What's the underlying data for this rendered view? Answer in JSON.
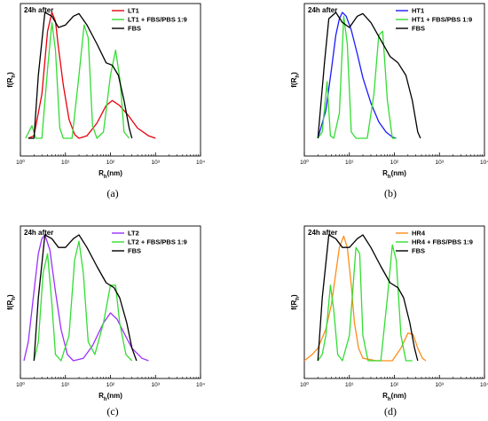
{
  "chart_data": [
    {
      "type": "line",
      "caption": "(a)",
      "annotation": "24h after",
      "xlabel": "R_h(nm)",
      "ylabel": "f(R_h)",
      "x_scale": "log",
      "xlim": [
        1,
        10000
      ],
      "ylim": [
        0,
        1
      ],
      "xticks": [
        "10⁰",
        "10¹",
        "10²",
        "10³",
        "10⁴"
      ],
      "legend_position": "top-right",
      "series": [
        {
          "name": "LT1",
          "color": "#e8000b",
          "points": [
            [
              1.5,
              0
            ],
            [
              2,
              0.02
            ],
            [
              3,
              0.35
            ],
            [
              4,
              0.85
            ],
            [
              5,
              1.0
            ],
            [
              6,
              0.93
            ],
            [
              7,
              0.72
            ],
            [
              9,
              0.42
            ],
            [
              12,
              0.15
            ],
            [
              16,
              0.03
            ],
            [
              20,
              0.0
            ],
            [
              30,
              0.02
            ],
            [
              50,
              0.12
            ],
            [
              80,
              0.26
            ],
            [
              110,
              0.3
            ],
            [
              160,
              0.26
            ],
            [
              250,
              0.18
            ],
            [
              400,
              0.08
            ],
            [
              700,
              0.02
            ],
            [
              1000,
              0
            ]
          ]
        },
        {
          "name": "LT1 + FBS/PBS 1:9",
          "color": "#33dd33",
          "points": [
            [
              1.3,
              0
            ],
            [
              1.8,
              0.1
            ],
            [
              2.2,
              0.0
            ],
            [
              3,
              0.0
            ],
            [
              4,
              0.55
            ],
            [
              5,
              0.92
            ],
            [
              6,
              0.7
            ],
            [
              7.5,
              0.08
            ],
            [
              9,
              0.0
            ],
            [
              14,
              0.0
            ],
            [
              20,
              0.5
            ],
            [
              26,
              0.9
            ],
            [
              32,
              0.8
            ],
            [
              40,
              0.1
            ],
            [
              50,
              0.0
            ],
            [
              70,
              0.05
            ],
            [
              100,
              0.5
            ],
            [
              130,
              0.7
            ],
            [
              165,
              0.45
            ],
            [
              200,
              0.05
            ],
            [
              260,
              0
            ]
          ]
        },
        {
          "name": "FBS",
          "color": "#000000",
          "points": [
            [
              1.5,
              0
            ],
            [
              2,
              0.0
            ],
            [
              2.5,
              0.5
            ],
            [
              3.5,
              1.0
            ],
            [
              5,
              0.97
            ],
            [
              7,
              0.88
            ],
            [
              10,
              0.9
            ],
            [
              15,
              0.97
            ],
            [
              20,
              0.99
            ],
            [
              30,
              0.9
            ],
            [
              50,
              0.75
            ],
            [
              80,
              0.6
            ],
            [
              110,
              0.58
            ],
            [
              150,
              0.5
            ],
            [
              200,
              0.3
            ],
            [
              260,
              0.08
            ],
            [
              300,
              0
            ]
          ]
        }
      ]
    },
    {
      "type": "line",
      "caption": "(b)",
      "annotation": "24h after",
      "xlabel": "R_h(nm)",
      "ylabel": "f(R_h)",
      "x_scale": "log",
      "xlim": [
        1,
        10000
      ],
      "ylim": [
        0,
        1
      ],
      "xticks": [
        "10⁰",
        "10¹",
        "10²",
        "10³",
        "10⁴"
      ],
      "legend_position": "top-right",
      "series": [
        {
          "name": "HT1",
          "color": "#1a1aff",
          "points": [
            [
              2,
              0
            ],
            [
              3,
              0.22
            ],
            [
              4,
              0.55
            ],
            [
              5,
              0.82
            ],
            [
              6,
              0.95
            ],
            [
              7,
              1.0
            ],
            [
              8.5,
              0.97
            ],
            [
              11,
              0.86
            ],
            [
              15,
              0.67
            ],
            [
              20,
              0.48
            ],
            [
              30,
              0.28
            ],
            [
              45,
              0.13
            ],
            [
              65,
              0.05
            ],
            [
              90,
              0.01
            ],
            [
              110,
              0
            ]
          ]
        },
        {
          "name": "HT1 + FBS/PBS 1:9",
          "color": "#33dd33",
          "points": [
            [
              2,
              0
            ],
            [
              2.5,
              0.05
            ],
            [
              3.2,
              0.45
            ],
            [
              3.8,
              0.02
            ],
            [
              4.5,
              0.0
            ],
            [
              6,
              0.2
            ],
            [
              7.5,
              0.97
            ],
            [
              9,
              0.75
            ],
            [
              11,
              0.05
            ],
            [
              14,
              0.0
            ],
            [
              25,
              0.0
            ],
            [
              35,
              0.35
            ],
            [
              45,
              0.82
            ],
            [
              55,
              0.85
            ],
            [
              70,
              0.3
            ],
            [
              90,
              0.0
            ],
            [
              110,
              0
            ]
          ]
        },
        {
          "name": "FBS",
          "color": "#000000",
          "points": [
            [
              2,
              0
            ],
            [
              2.8,
              0.6
            ],
            [
              3.5,
              0.95
            ],
            [
              5,
              1.0
            ],
            [
              7,
              0.92
            ],
            [
              10,
              0.88
            ],
            [
              15,
              0.97
            ],
            [
              20,
              0.99
            ],
            [
              30,
              0.92
            ],
            [
              50,
              0.78
            ],
            [
              80,
              0.65
            ],
            [
              120,
              0.6
            ],
            [
              180,
              0.5
            ],
            [
              250,
              0.3
            ],
            [
              330,
              0.05
            ],
            [
              380,
              0
            ]
          ]
        }
      ]
    },
    {
      "type": "line",
      "caption": "(c)",
      "annotation": "24h after",
      "xlabel": "R_h(nm)",
      "ylabel": "f(R_h)",
      "x_scale": "log",
      "xlim": [
        1,
        10000
      ],
      "ylim": [
        0,
        1
      ],
      "xticks": [
        "10⁰",
        "10¹",
        "10²",
        "10³",
        "10⁴"
      ],
      "legend_position": "top-right",
      "series": [
        {
          "name": "LT2",
          "color": "#9b30ff",
          "points": [
            [
              1.2,
              0
            ],
            [
              1.5,
              0.15
            ],
            [
              2,
              0.55
            ],
            [
              2.5,
              0.85
            ],
            [
              3,
              0.97
            ],
            [
              3.5,
              1.0
            ],
            [
              4.5,
              0.88
            ],
            [
              6,
              0.55
            ],
            [
              8,
              0.25
            ],
            [
              11,
              0.05
            ],
            [
              15,
              0.0
            ],
            [
              25,
              0.02
            ],
            [
              40,
              0.12
            ],
            [
              70,
              0.3
            ],
            [
              100,
              0.38
            ],
            [
              140,
              0.33
            ],
            [
              200,
              0.22
            ],
            [
              300,
              0.1
            ],
            [
              500,
              0.02
            ],
            [
              700,
              0
            ]
          ]
        },
        {
          "name": "LT2 + FBS/PBS 1:9",
          "color": "#33dd33",
          "points": [
            [
              2,
              0
            ],
            [
              2.5,
              0.15
            ],
            [
              3.2,
              0.7
            ],
            [
              4,
              0.85
            ],
            [
              5,
              0.45
            ],
            [
              6,
              0.05
            ],
            [
              8,
              0.0
            ],
            [
              12,
              0.2
            ],
            [
              16,
              0.8
            ],
            [
              20,
              0.95
            ],
            [
              25,
              0.7
            ],
            [
              32,
              0.15
            ],
            [
              45,
              0.05
            ],
            [
              70,
              0.3
            ],
            [
              100,
              0.6
            ],
            [
              130,
              0.6
            ],
            [
              160,
              0.3
            ],
            [
              220,
              0.05
            ],
            [
              300,
              0
            ]
          ]
        },
        {
          "name": "FBS",
          "color": "#000000",
          "points": [
            [
              2,
              0
            ],
            [
              2.5,
              0.5
            ],
            [
              3.5,
              1.0
            ],
            [
              5,
              0.97
            ],
            [
              7,
              0.9
            ],
            [
              10,
              0.9
            ],
            [
              15,
              0.97
            ],
            [
              20,
              1.0
            ],
            [
              30,
              0.9
            ],
            [
              50,
              0.75
            ],
            [
              80,
              0.62
            ],
            [
              120,
              0.58
            ],
            [
              160,
              0.5
            ],
            [
              230,
              0.3
            ],
            [
              300,
              0.1
            ],
            [
              380,
              0
            ]
          ]
        }
      ]
    },
    {
      "type": "line",
      "caption": "(d)",
      "annotation": "24h after",
      "xlabel": "R_h(nm)",
      "ylabel": "f(R_h)",
      "x_scale": "log",
      "xlim": [
        1,
        10000
      ],
      "ylim": [
        0,
        1
      ],
      "xticks": [
        "10⁰",
        "10¹",
        "10²",
        "10³",
        "10⁴"
      ],
      "legend_position": "top-right",
      "series": [
        {
          "name": "HR4",
          "color": "#ff8c1a",
          "points": [
            [
              1,
              0
            ],
            [
              1.5,
              0.05
            ],
            [
              2,
              0.1
            ],
            [
              3,
              0.25
            ],
            [
              4,
              0.45
            ],
            [
              5,
              0.7
            ],
            [
              6,
              0.9
            ],
            [
              7.5,
              0.99
            ],
            [
              9,
              0.9
            ],
            [
              11,
              0.6
            ],
            [
              13,
              0.3
            ],
            [
              16,
              0.1
            ],
            [
              20,
              0.02
            ],
            [
              40,
              0.0
            ],
            [
              90,
              0.0
            ],
            [
              140,
              0.1
            ],
            [
              200,
              0.22
            ],
            [
              260,
              0.21
            ],
            [
              330,
              0.1
            ],
            [
              420,
              0.02
            ],
            [
              500,
              0
            ]
          ]
        },
        {
          "name": "HR4 + FBS/PBS 1:9",
          "color": "#33dd33",
          "points": [
            [
              2,
              0
            ],
            [
              2.5,
              0.05
            ],
            [
              3,
              0.2
            ],
            [
              3.8,
              0.6
            ],
            [
              4.5,
              0.4
            ],
            [
              5.5,
              0.05
            ],
            [
              7,
              0.0
            ],
            [
              10,
              0.2
            ],
            [
              14,
              0.9
            ],
            [
              17,
              0.85
            ],
            [
              20,
              0.2
            ],
            [
              26,
              0.0
            ],
            [
              50,
              0.0
            ],
            [
              70,
              0.5
            ],
            [
              90,
              0.92
            ],
            [
              110,
              0.8
            ],
            [
              140,
              0.2
            ],
            [
              180,
              0.0
            ],
            [
              250,
              0
            ]
          ]
        },
        {
          "name": "FBS",
          "color": "#000000",
          "points": [
            [
              2,
              0
            ],
            [
              2.5,
              0.5
            ],
            [
              3.5,
              1.0
            ],
            [
              5,
              0.97
            ],
            [
              7,
              0.9
            ],
            [
              10,
              0.9
            ],
            [
              15,
              0.97
            ],
            [
              20,
              1.0
            ],
            [
              30,
              0.9
            ],
            [
              50,
              0.75
            ],
            [
              80,
              0.62
            ],
            [
              120,
              0.58
            ],
            [
              160,
              0.5
            ],
            [
              220,
              0.3
            ],
            [
              280,
              0.1
            ],
            [
              330,
              0
            ]
          ]
        }
      ]
    }
  ]
}
